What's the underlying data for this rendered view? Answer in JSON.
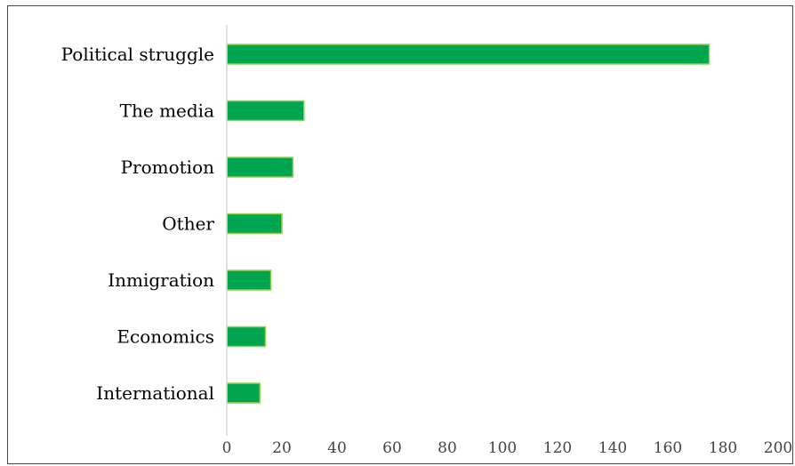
{
  "chart_data": {
    "type": "bar",
    "orientation": "horizontal",
    "categories": [
      "Political struggle",
      "The media",
      "Promotion",
      "Other",
      "Inmigration",
      "Economics",
      "International"
    ],
    "values": [
      175,
      28,
      24,
      20,
      16,
      14,
      12
    ],
    "xlim": [
      0,
      200
    ],
    "xticks": [
      "0",
      "20",
      "40",
      "60",
      "80",
      "100",
      "120",
      "140",
      "160",
      "180",
      "200"
    ],
    "grid": false,
    "bar_color": "#00A550",
    "bar_edge_color": "#92D050",
    "axis_color": "#D9D9D9"
  }
}
